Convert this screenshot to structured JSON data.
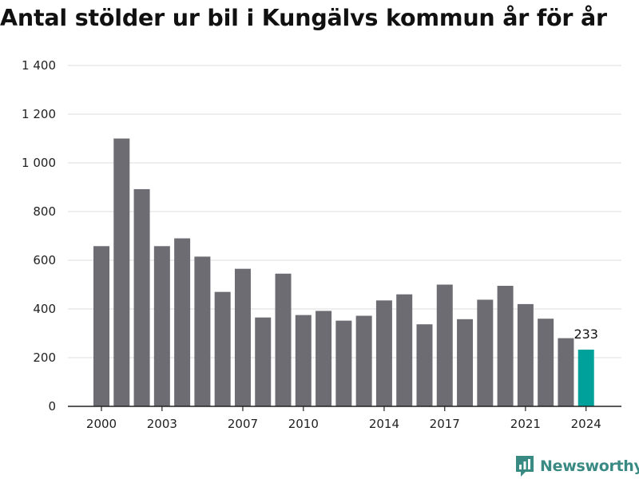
{
  "title": "Antal stölder ur bil i Kungälvs kommun år för år",
  "brand": {
    "name": "Newsworthy",
    "icon": "newsworthy-logo-icon",
    "color": "#3a8a84"
  },
  "colors": {
    "bar": "#6d6c73",
    "highlight": "#00a19a",
    "grid": "#dddddd",
    "axis": "#222222"
  },
  "chart_data": {
    "type": "bar",
    "title": "Antal stölder ur bil i Kungälvs kommun år för år",
    "xlabel": "",
    "ylabel": "",
    "categories": [
      "2000",
      "2001",
      "2002",
      "2003",
      "2004",
      "2005",
      "2006",
      "2007",
      "2008",
      "2009",
      "2010",
      "2011",
      "2012",
      "2013",
      "2014",
      "2015",
      "2016",
      "2017",
      "2018",
      "2019",
      "2020",
      "2021",
      "2022",
      "2023",
      "2024"
    ],
    "values": [
      658,
      1100,
      892,
      658,
      690,
      615,
      470,
      565,
      365,
      545,
      375,
      392,
      352,
      372,
      435,
      460,
      337,
      500,
      358,
      438,
      495,
      420,
      360,
      280,
      233
    ],
    "highlight_index": 24,
    "data_labels": [
      {
        "category": "2024",
        "text": "233"
      }
    ],
    "ylim": [
      0,
      1400
    ],
    "yticks": [
      0,
      200,
      400,
      600,
      800,
      1000,
      1200,
      1400
    ],
    "ytick_labels": [
      "0",
      "200",
      "400",
      "600",
      "800",
      "1 000",
      "1 200",
      "1 400"
    ],
    "xticks": [
      "2000",
      "2003",
      "2007",
      "2010",
      "2014",
      "2017",
      "2021",
      "2024"
    ],
    "grid": true,
    "legend": "none"
  }
}
